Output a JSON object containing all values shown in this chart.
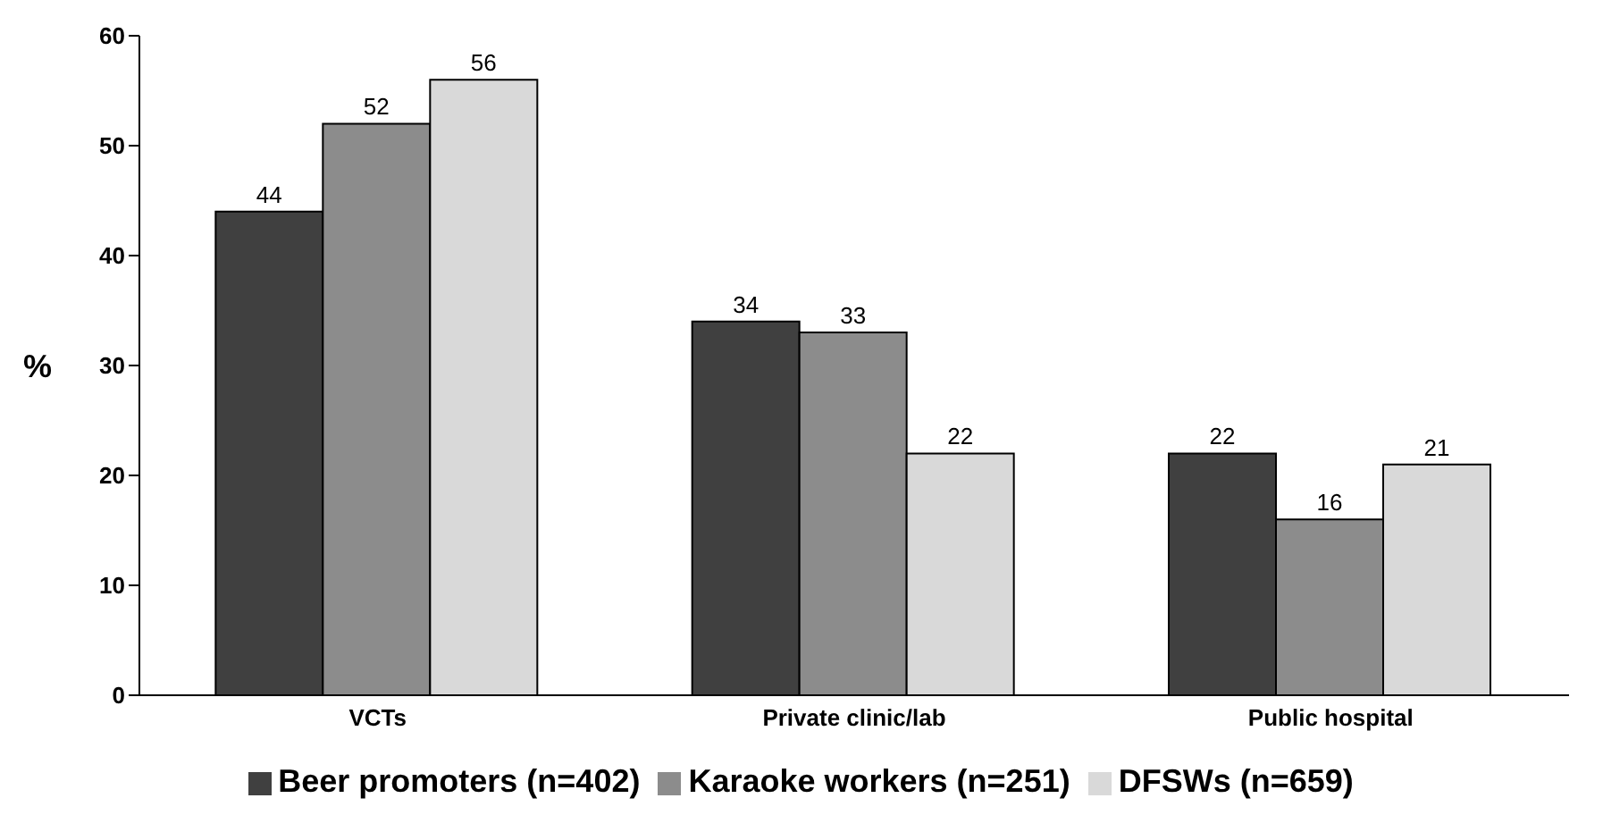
{
  "chart_data": {
    "type": "bar",
    "ylabel": "%",
    "categories": [
      "VCTs",
      "Private clinic/lab",
      "Public hospital"
    ],
    "series": [
      {
        "name": "Beer promoters (n=402)",
        "color": "#404040",
        "values": [
          44,
          34,
          22
        ]
      },
      {
        "name": "Karaoke workers (n=251)",
        "color": "#8c8c8c",
        "values": [
          52,
          33,
          16
        ]
      },
      {
        "name": "DFSWs (n=659)",
        "color": "#d9d9d9",
        "values": [
          56,
          22,
          21
        ]
      }
    ],
    "ylim": [
      0,
      60
    ],
    "yticks": [
      0,
      10,
      20,
      30,
      40,
      50,
      60
    ],
    "data_labels": true,
    "grid": false,
    "legend": "bottom"
  }
}
